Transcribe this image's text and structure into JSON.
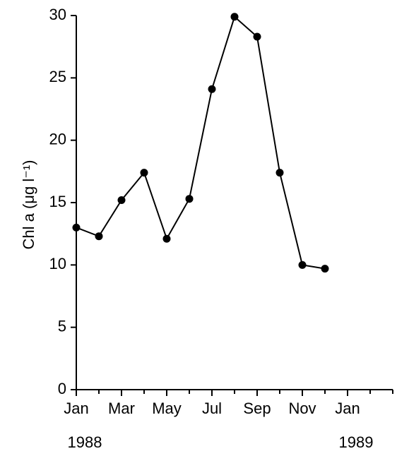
{
  "chart_data": {
    "type": "line",
    "ylabel": "Chl a (μg l⁻¹)",
    "categories": [
      "Jan",
      null,
      "Mar",
      null,
      "May",
      null,
      "Jul",
      null,
      "Sep",
      null,
      "Nov",
      null,
      "Jan",
      null,
      null
    ],
    "year_labels": [
      "1988",
      null,
      null,
      null,
      null,
      null,
      null,
      null,
      null,
      null,
      null,
      null,
      "1989",
      null,
      null
    ],
    "series": [
      {
        "name": null,
        "color": "#000000",
        "values": [
          13.0,
          12.3,
          15.2,
          17.4,
          12.1,
          15.3,
          24.1,
          29.9,
          28.3,
          17.4,
          10.0,
          9.7,
          null,
          null,
          null
        ]
      }
    ],
    "ylim": [
      0,
      30
    ],
    "yticks": [
      0,
      5,
      10,
      15,
      20,
      25,
      30
    ],
    "grid": false
  }
}
